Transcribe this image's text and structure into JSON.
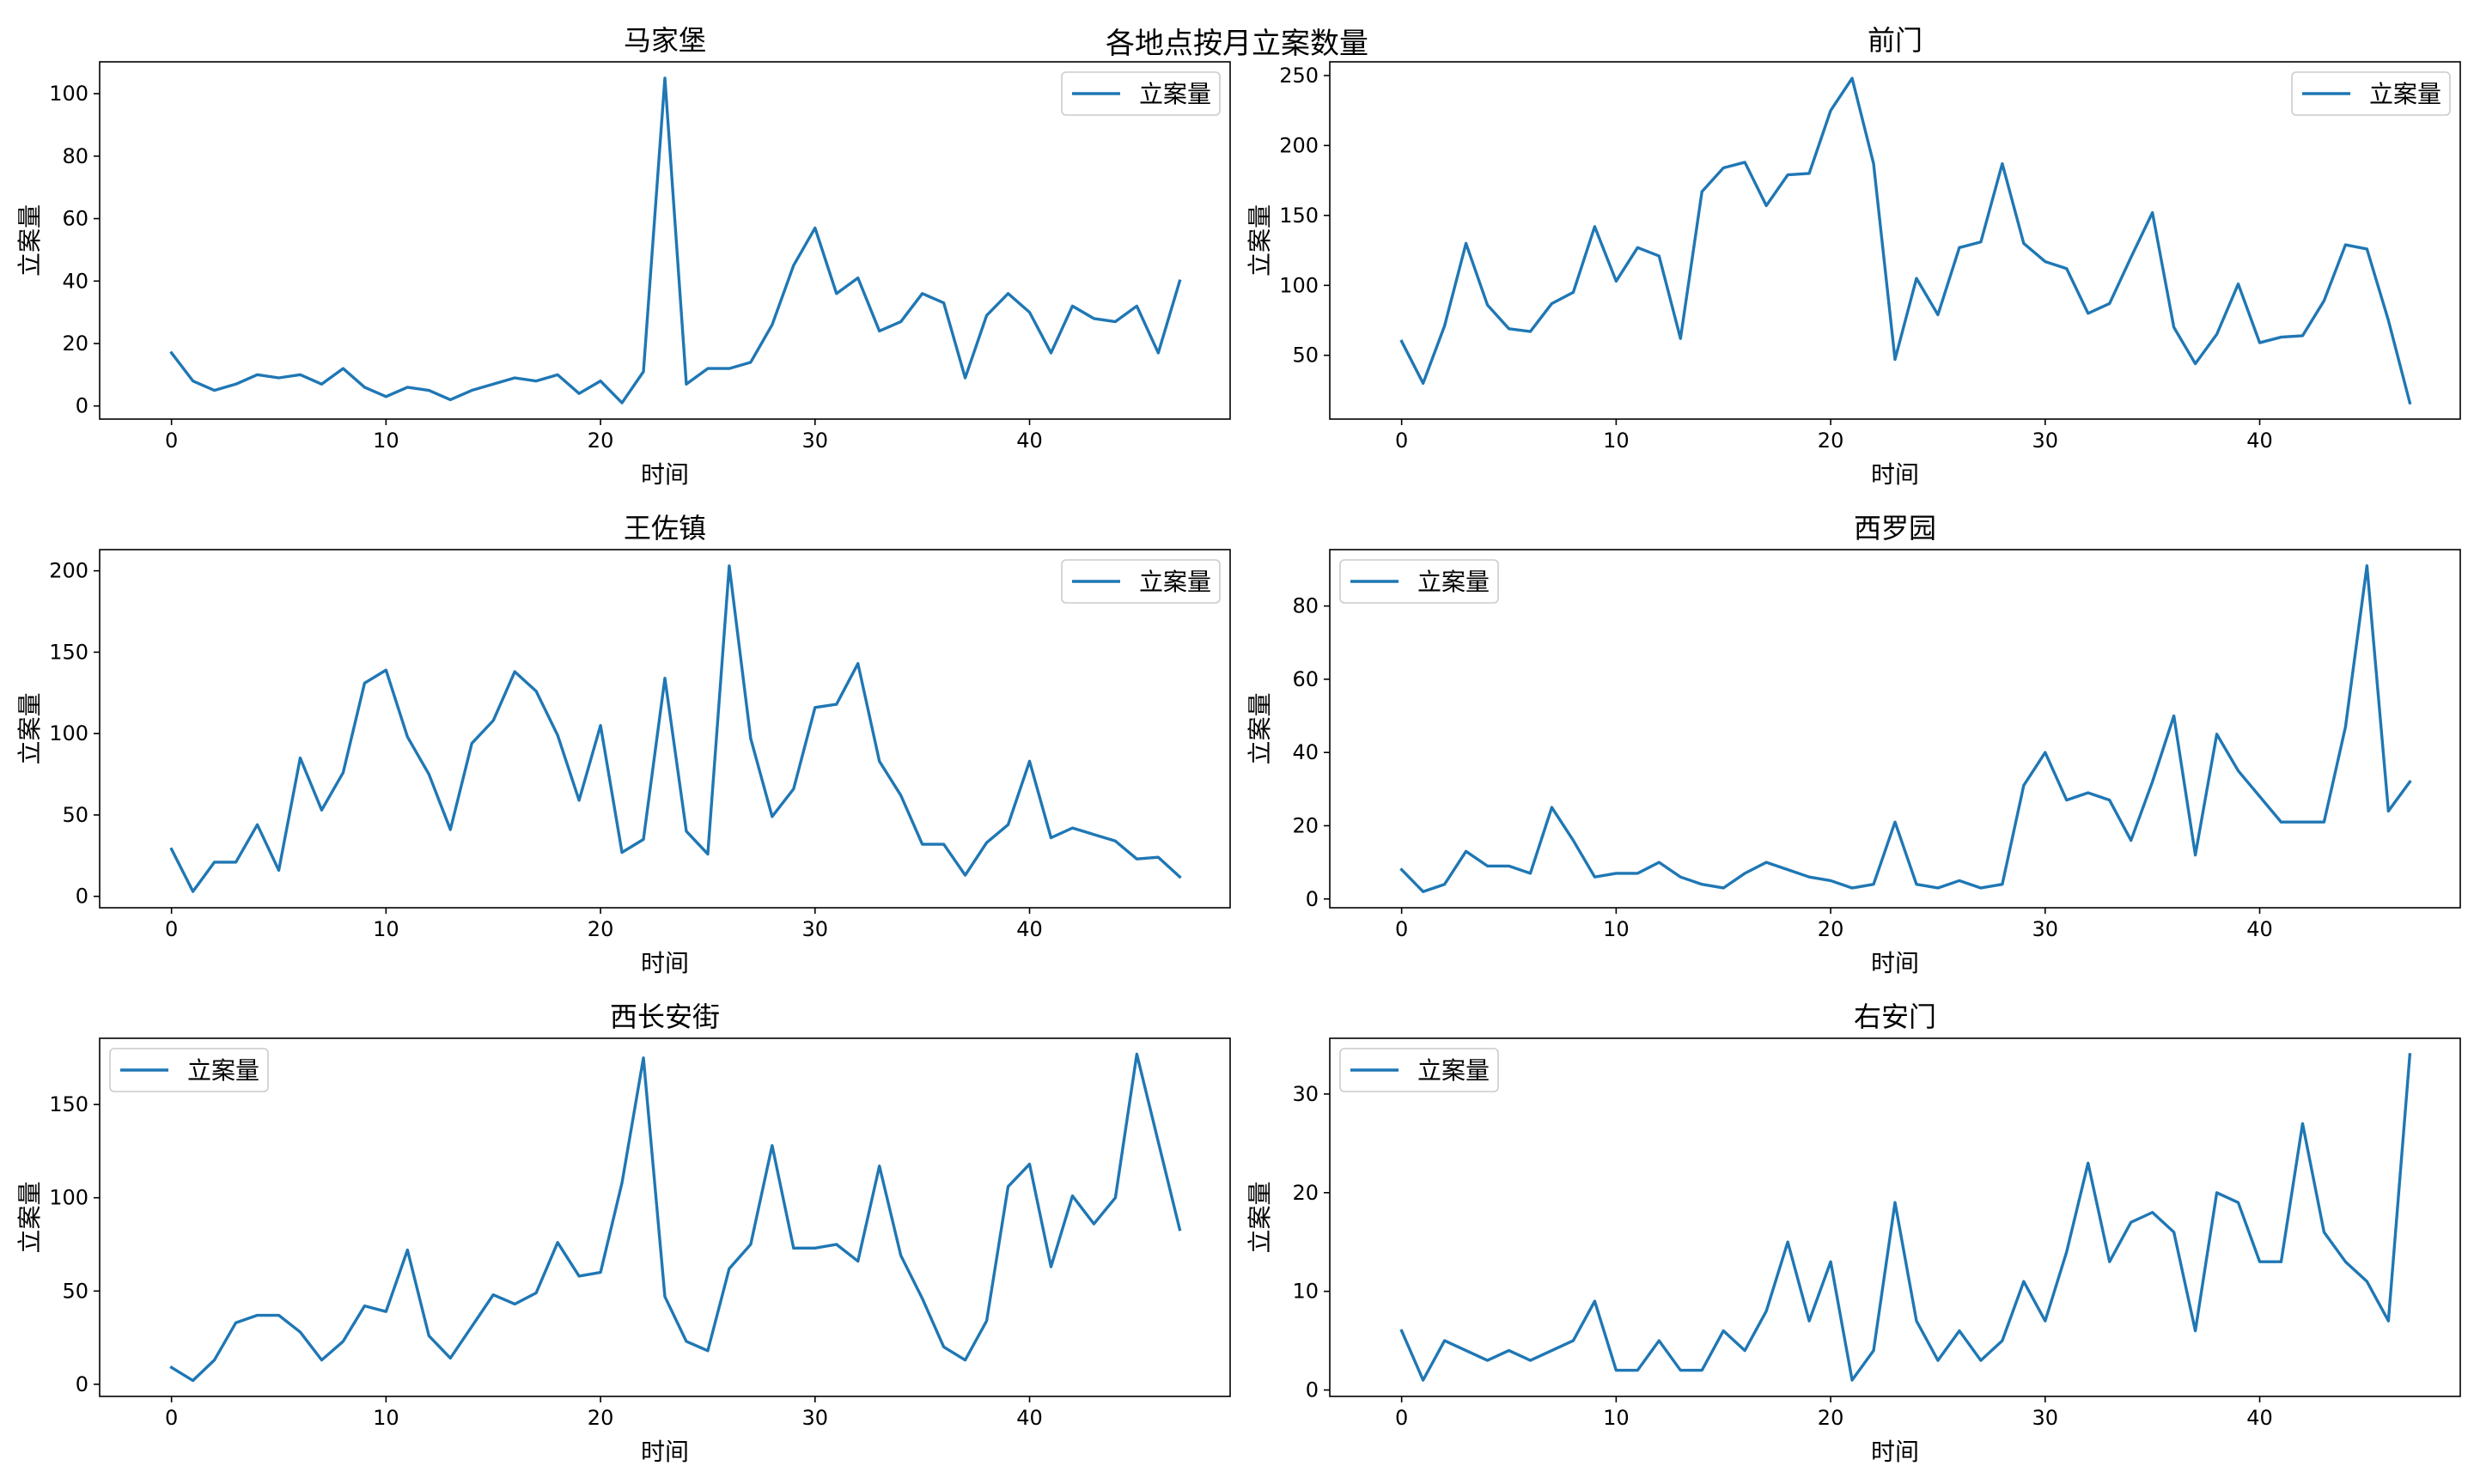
{
  "suptitle": "各地点按月立案数量",
  "colors": {
    "series": "#1f77b4",
    "legend_border": "#cccccc"
  },
  "chart_data": [
    {
      "type": "line",
      "title": "马家堡",
      "xlabel": "时间",
      "ylabel": "立案量",
      "xlim": [
        -3.35,
        49.35
      ],
      "ylim": [
        -4.2,
        110.2
      ],
      "xticks": [
        0,
        10,
        20,
        30,
        40
      ],
      "yticks": [
        0,
        20,
        40,
        60,
        80,
        100
      ],
      "legend": "top-right",
      "series": [
        {
          "name": "立案量",
          "x": [
            0,
            1,
            2,
            3,
            4,
            5,
            6,
            7,
            8,
            9,
            10,
            11,
            12,
            13,
            14,
            15,
            16,
            17,
            18,
            19,
            20,
            21,
            22,
            23,
            24,
            25,
            26,
            27,
            28,
            29,
            30,
            31,
            32,
            33,
            34,
            35,
            36,
            37,
            38,
            39,
            40,
            41,
            42,
            43,
            44,
            45,
            46,
            47
          ],
          "values": [
            17,
            8,
            5,
            7,
            10,
            9,
            10,
            7,
            12,
            6,
            3,
            6,
            5,
            2,
            5,
            7,
            9,
            8,
            10,
            4,
            8,
            1,
            11,
            105,
            7,
            12,
            12,
            14,
            26,
            45,
            57,
            36,
            41,
            24,
            27,
            36,
            33,
            9,
            29,
            36,
            30,
            17,
            32,
            28,
            27,
            32,
            17,
            40
          ]
        }
      ]
    },
    {
      "type": "line",
      "title": "前门",
      "xlabel": "时间",
      "ylabel": "立案量",
      "xlim": [
        -3.35,
        49.35
      ],
      "ylim": [
        4.4,
        259.8
      ],
      "xticks": [
        0,
        10,
        20,
        30,
        40
      ],
      "yticks": [
        50,
        100,
        150,
        200,
        250
      ],
      "legend": "top-right",
      "series": [
        {
          "name": "立案量",
          "x": [
            0,
            1,
            2,
            3,
            4,
            5,
            6,
            7,
            8,
            9,
            10,
            11,
            12,
            13,
            14,
            15,
            16,
            17,
            18,
            19,
            20,
            21,
            22,
            23,
            24,
            25,
            26,
            27,
            28,
            29,
            30,
            31,
            32,
            33,
            34,
            35,
            36,
            37,
            38,
            39,
            40,
            41,
            42,
            43,
            44,
            45,
            46,
            47
          ],
          "values": [
            60,
            30,
            71,
            130,
            86,
            69,
            67,
            87,
            95,
            142,
            103,
            127,
            121,
            62,
            167,
            184,
            188,
            157,
            179,
            180,
            225,
            248,
            187,
            47,
            105,
            79,
            127,
            131,
            187,
            130,
            117,
            112,
            80,
            87,
            120,
            152,
            70,
            44,
            65,
            101,
            59,
            63,
            64,
            89,
            129,
            126,
            75,
            16
          ]
        }
      ]
    },
    {
      "type": "line",
      "title": "王佐镇",
      "xlabel": "时间",
      "ylabel": "立案量",
      "xlim": [
        -3.35,
        49.35
      ],
      "ylim": [
        -7.0,
        213.0
      ],
      "xticks": [
        0,
        10,
        20,
        30,
        40
      ],
      "yticks": [
        0,
        50,
        100,
        150,
        200
      ],
      "legend": "top-right",
      "series": [
        {
          "name": "立案量",
          "x": [
            0,
            1,
            2,
            3,
            4,
            5,
            6,
            7,
            8,
            9,
            10,
            11,
            12,
            13,
            14,
            15,
            16,
            17,
            18,
            19,
            20,
            21,
            22,
            23,
            24,
            25,
            26,
            27,
            28,
            29,
            30,
            31,
            32,
            33,
            34,
            35,
            36,
            37,
            38,
            39,
            40,
            41,
            42,
            43,
            44,
            45,
            46,
            47
          ],
          "values": [
            29,
            3,
            21,
            21,
            44,
            16,
            85,
            53,
            76,
            131,
            139,
            98,
            75,
            41,
            94,
            108,
            138,
            126,
            99,
            59,
            105,
            27,
            35,
            134,
            40,
            26,
            203,
            97,
            49,
            66,
            116,
            118,
            143,
            83,
            62,
            32,
            32,
            13,
            33,
            44,
            83,
            36,
            42,
            38,
            34,
            23,
            24,
            12
          ]
        }
      ]
    },
    {
      "type": "line",
      "title": "西罗园",
      "xlabel": "时间",
      "ylabel": "立案量",
      "xlim": [
        -3.35,
        49.35
      ],
      "ylim": [
        -2.4,
        95.4
      ],
      "xticks": [
        0,
        10,
        20,
        30,
        40
      ],
      "yticks": [
        0,
        20,
        40,
        60,
        80
      ],
      "legend": "top-left",
      "series": [
        {
          "name": "立案量",
          "x": [
            0,
            1,
            2,
            3,
            4,
            5,
            6,
            7,
            8,
            9,
            10,
            11,
            12,
            13,
            14,
            15,
            16,
            17,
            18,
            19,
            20,
            21,
            22,
            23,
            24,
            25,
            26,
            27,
            28,
            29,
            30,
            31,
            32,
            33,
            34,
            35,
            36,
            37,
            38,
            39,
            40,
            41,
            42,
            43,
            44,
            45,
            46,
            47
          ],
          "values": [
            8,
            2,
            4,
            13,
            9,
            9,
            7,
            25,
            16,
            6,
            7,
            7,
            10,
            6,
            4,
            3,
            7,
            10,
            8,
            6,
            5,
            3,
            4,
            21,
            4,
            3,
            5,
            3,
            4,
            31,
            40,
            27,
            29,
            27,
            16,
            32,
            50,
            12,
            45,
            35,
            28,
            21,
            21,
            21,
            47,
            91,
            24,
            32
          ]
        }
      ]
    },
    {
      "type": "line",
      "title": "西长安街",
      "xlabel": "时间",
      "ylabel": "立案量",
      "xlim": [
        -3.35,
        49.35
      ],
      "ylim": [
        -6.5,
        185.5
      ],
      "xticks": [
        0,
        10,
        20,
        30,
        40
      ],
      "yticks": [
        0,
        50,
        100,
        150
      ],
      "legend": "top-left",
      "series": [
        {
          "name": "立案量",
          "x": [
            0,
            1,
            2,
            3,
            4,
            5,
            6,
            7,
            8,
            9,
            10,
            11,
            12,
            13,
            14,
            15,
            16,
            17,
            18,
            19,
            20,
            21,
            22,
            23,
            24,
            25,
            26,
            27,
            28,
            29,
            30,
            31,
            32,
            33,
            34,
            35,
            36,
            37,
            38,
            39,
            40,
            41,
            42,
            43,
            44,
            45,
            46,
            47
          ],
          "values": [
            9,
            2,
            13,
            33,
            37,
            37,
            28,
            13,
            23,
            42,
            39,
            72,
            26,
            14,
            31,
            48,
            43,
            49,
            76,
            58,
            60,
            108,
            175,
            47,
            23,
            18,
            62,
            75,
            128,
            73,
            73,
            75,
            66,
            117,
            69,
            46,
            20,
            13,
            34,
            106,
            118,
            63,
            101,
            86,
            100,
            177,
            130,
            83
          ]
        }
      ]
    },
    {
      "type": "line",
      "title": "右安门",
      "xlabel": "时间",
      "ylabel": "立案量",
      "xlim": [
        -3.35,
        49.35
      ],
      "ylim": [
        -0.65,
        35.65
      ],
      "xticks": [
        0,
        10,
        20,
        30,
        40
      ],
      "yticks": [
        0,
        10,
        20,
        30
      ],
      "legend": "top-left",
      "series": [
        {
          "name": "立案量",
          "x": [
            0,
            1,
            2,
            3,
            4,
            5,
            6,
            7,
            8,
            9,
            10,
            11,
            12,
            13,
            14,
            15,
            16,
            17,
            18,
            19,
            20,
            21,
            22,
            23,
            24,
            25,
            26,
            27,
            28,
            29,
            30,
            31,
            32,
            33,
            34,
            35,
            36,
            37,
            38,
            39,
            40,
            41,
            42,
            43,
            44,
            45,
            46,
            47
          ],
          "values": [
            6,
            1,
            5,
            4,
            3,
            4,
            3,
            4,
            5,
            9,
            2,
            2,
            5,
            2,
            2,
            6,
            4,
            8,
            15,
            7,
            13,
            1,
            4,
            19,
            7,
            3,
            6,
            3,
            5,
            11,
            7,
            14,
            23,
            13,
            17,
            18,
            16,
            6,
            20,
            19,
            13,
            13,
            27,
            16,
            13,
            11,
            7,
            34
          ]
        }
      ]
    }
  ]
}
